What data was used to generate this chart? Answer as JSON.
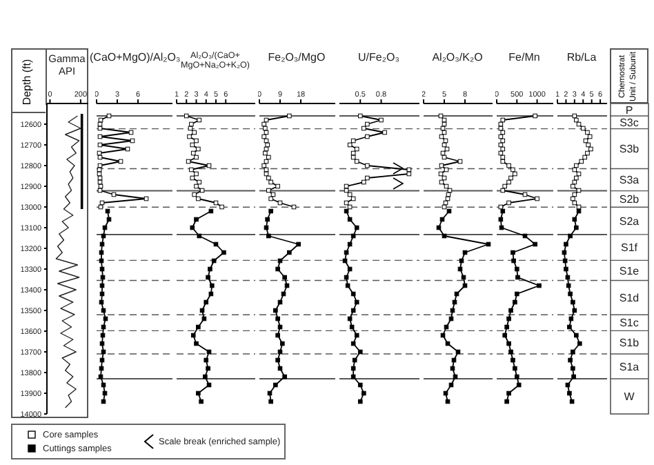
{
  "chart_data": [
    {
      "type": "line",
      "xlabel": "Gamma API",
      "ylabel": "Depth (ft)",
      "marker": "none",
      "xlim": [
        -20,
        250
      ],
      "xticks": [
        0,
        200
      ],
      "ylim": [
        14000,
        12500
      ],
      "yticks": [
        12600,
        12700,
        12800,
        12900,
        13000,
        13100,
        13200,
        13300,
        13400,
        13500,
        13600,
        13700,
        13800,
        13900,
        14000
      ],
      "series": [
        {
          "color": "#222222",
          "x": [
            180,
            120,
            200,
            100,
            190,
            140,
            170,
            110,
            160,
            130,
            150,
            120,
            140,
            100,
            130,
            90,
            150,
            80,
            120,
            60,
            90,
            50,
            80,
            40,
            180,
            60,
            190,
            50,
            170,
            60,
            150,
            70,
            160,
            80,
            140,
            70,
            150,
            90,
            170,
            80,
            130,
            100,
            150,
            110,
            170,
            120,
            140,
            100
          ],
          "values": [
            12560,
            12590,
            12620,
            12650,
            12680,
            12710,
            12740,
            12770,
            12800,
            12830,
            12860,
            12890,
            12920,
            12950,
            12980,
            13010,
            13040,
            13070,
            13100,
            13130,
            13160,
            13190,
            13220,
            13250,
            13280,
            13310,
            13340,
            13370,
            13400,
            13430,
            13460,
            13490,
            13520,
            13550,
            13580,
            13610,
            13640,
            13670,
            13700,
            13730,
            13760,
            13790,
            13820,
            13850,
            13880,
            13910,
            13940,
            13970
          ]
        },
        {
          "color": "#000000",
          "x": [
            208,
            208
          ],
          "values": [
            12550,
            13010
          ]
        }
      ]
    },
    {
      "type": "line",
      "xlabel": "(CaO+MgO)/Al₂O₃",
      "marker": "square",
      "xlim": [
        0,
        11
      ],
      "xticks": [
        0,
        3,
        6
      ],
      "ylim": [
        14000,
        12500
      ],
      "tick_labels": "x",
      "legend": "bottom",
      "annotations": [
        "Scale break (enriched sample)"
      ],
      "series": [
        {
          "name": "Core samples",
          "color": "#000000",
          "x": [
            1.8,
            0.6,
            0.5,
            0.5,
            5.0,
            0.5,
            5.2,
            0.5,
            4.5,
            0.4,
            0.5,
            3.5,
            0.5,
            0.4,
            0.4,
            0.5,
            0.5,
            0.6,
            0.5,
            2.5,
            7.2,
            0.8,
            0.6
          ],
          "values": [
            12560,
            12580,
            12600,
            12620,
            12640,
            12660,
            12680,
            12700,
            12720,
            12740,
            12760,
            12780,
            12800,
            12820,
            12840,
            12860,
            12880,
            12900,
            12920,
            12940,
            12960,
            12980,
            13000
          ]
        },
        {
          "name": "Cuttings samples",
          "color": "#000000",
          "x": [
            1.6,
            1.8,
            1.2,
            1.0,
            0.8,
            0.7,
            0.7,
            0.8,
            0.9,
            0.8,
            0.8,
            0.7,
            1.0,
            1.3,
            1.0,
            0.9,
            0.8,
            1.0,
            0.8,
            0.7,
            0.6,
            1.0,
            1.2,
            1.0
          ],
          "values": [
            13020,
            13060,
            13100,
            13140,
            13180,
            13220,
            13260,
            13300,
            13340,
            13380,
            13420,
            13460,
            13500,
            13540,
            13580,
            13620,
            13660,
            13700,
            13740,
            13780,
            13820,
            13860,
            13900,
            13940
          ]
        }
      ],
      "ref_lines": [
        {
          "axis": "y",
          "value": 12560,
          "line_style": "solid"
        },
        {
          "axis": "y",
          "value": 12622,
          "line_style": "dashed"
        },
        {
          "axis": "y",
          "value": 12815,
          "line_style": "dashed"
        },
        {
          "axis": "y",
          "value": 12922,
          "line_style": "solid"
        },
        {
          "axis": "y",
          "value": 13001,
          "line_style": "dashed"
        },
        {
          "axis": "y",
          "value": 13133,
          "line_style": "solid"
        },
        {
          "axis": "y",
          "value": 13258,
          "line_style": "dashed"
        },
        {
          "axis": "y",
          "value": 13355,
          "line_style": "dashed"
        },
        {
          "axis": "y",
          "value": 13521,
          "line_style": "dashed"
        },
        {
          "axis": "y",
          "value": 13598,
          "line_style": "dashed"
        },
        {
          "axis": "y",
          "value": 13710,
          "line_style": "dashed"
        },
        {
          "axis": "y",
          "value": 13830,
          "line_style": "solid"
        }
      ]
    },
    {
      "type": "line",
      "xlabel": "Al₂O₃/(CaO+ MgO+Na₂O+K₂O)",
      "marker": "square",
      "xlim": [
        1,
        9
      ],
      "xticks": [
        1,
        2,
        3,
        4,
        5,
        6
      ],
      "ylim": [
        14000,
        12500
      ],
      "tick_labels": "x",
      "series": [
        {
          "color": "#000000",
          "x": [
            2.0,
            3.3,
            2.5,
            2.4,
            2.8,
            2.3,
            3.0,
            2.6,
            3.2,
            2.7,
            3.0,
            2.2,
            4.3,
            2.5,
            3.0,
            2.6,
            3.3,
            3.0,
            3.6,
            2.8,
            3.2,
            5.0,
            5.6
          ],
          "values": [
            12560,
            12580,
            12600,
            12620,
            12640,
            12660,
            12680,
            12700,
            12720,
            12740,
            12760,
            12780,
            12800,
            12820,
            12840,
            12860,
            12880,
            12900,
            12920,
            12940,
            12960,
            12980,
            13000
          ]
        },
        {
          "color": "#000000",
          "x": [
            4.5,
            3.0,
            2.6,
            3.3,
            5.0,
            5.8,
            4.8,
            4.4,
            4.2,
            4.6,
            4.5,
            4.0,
            3.6,
            3.8,
            3.2,
            2.7,
            3.0,
            4.3,
            4.0,
            4.2,
            3.9,
            4.3,
            3.2,
            3.5
          ],
          "values": [
            13020,
            13060,
            13100,
            13140,
            13180,
            13220,
            13260,
            13300,
            13340,
            13380,
            13420,
            13460,
            13500,
            13540,
            13580,
            13620,
            13660,
            13700,
            13740,
            13780,
            13820,
            13860,
            13900,
            13940
          ]
        }
      ],
      "ref_lines": [
        {
          "axis": "y",
          "value": 12560,
          "line_style": "solid"
        },
        {
          "axis": "y",
          "value": 12622,
          "line_style": "dashed"
        },
        {
          "axis": "y",
          "value": 12815,
          "line_style": "dashed"
        },
        {
          "axis": "y",
          "value": 12922,
          "line_style": "solid"
        },
        {
          "axis": "y",
          "value": 13001,
          "line_style": "dashed"
        },
        {
          "axis": "y",
          "value": 13133,
          "line_style": "solid"
        },
        {
          "axis": "y",
          "value": 13258,
          "line_style": "dashed"
        },
        {
          "axis": "y",
          "value": 13355,
          "line_style": "dashed"
        },
        {
          "axis": "y",
          "value": 13521,
          "line_style": "dashed"
        },
        {
          "axis": "y",
          "value": 13598,
          "line_style": "dashed"
        },
        {
          "axis": "y",
          "value": 13710,
          "line_style": "dashed"
        },
        {
          "axis": "y",
          "value": 13830,
          "line_style": "solid"
        }
      ]
    },
    {
      "type": "line",
      "xlabel": "Fe₂O₃/MgO",
      "marker": "square",
      "xlim": [
        0,
        33
      ],
      "xticks": [
        0,
        9,
        18
      ],
      "ylim": [
        14000,
        12500
      ],
      "tick_labels": "x",
      "series": [
        {
          "color": "#000000",
          "x": [
            13,
            3,
            2,
            2.5,
            3,
            2,
            3,
            3.5,
            3,
            2.5,
            4,
            3,
            2,
            3,
            3,
            4,
            5,
            8,
            4,
            6,
            5,
            9,
            15
          ],
          "values": [
            12560,
            12580,
            12600,
            12620,
            12640,
            12660,
            12680,
            12700,
            12720,
            12740,
            12760,
            12780,
            12800,
            12820,
            12840,
            12860,
            12880,
            12900,
            12920,
            12940,
            12960,
            12980,
            13000
          ]
        },
        {
          "color": "#000000",
          "x": [
            5,
            3.5,
            3,
            4,
            17,
            13,
            9,
            8,
            11,
            12,
            10.5,
            9,
            7,
            8,
            9,
            8,
            10,
            9,
            8,
            9,
            11,
            7,
            4.5,
            5
          ],
          "values": [
            13020,
            13060,
            13100,
            13140,
            13180,
            13220,
            13260,
            13300,
            13340,
            13380,
            13420,
            13460,
            13500,
            13540,
            13580,
            13620,
            13660,
            13700,
            13740,
            13780,
            13820,
            13860,
            13900,
            13940
          ]
        }
      ],
      "ref_lines": [
        {
          "axis": "y",
          "value": 12560,
          "line_style": "solid"
        },
        {
          "axis": "y",
          "value": 12622,
          "line_style": "dashed"
        },
        {
          "axis": "y",
          "value": 12815,
          "line_style": "dashed"
        },
        {
          "axis": "y",
          "value": 12922,
          "line_style": "solid"
        },
        {
          "axis": "y",
          "value": 13001,
          "line_style": "dashed"
        },
        {
          "axis": "y",
          "value": 13133,
          "line_style": "solid"
        },
        {
          "axis": "y",
          "value": 13258,
          "line_style": "dashed"
        },
        {
          "axis": "y",
          "value": 13355,
          "line_style": "dashed"
        },
        {
          "axis": "y",
          "value": 13521,
          "line_style": "dashed"
        },
        {
          "axis": "y",
          "value": 13598,
          "line_style": "dashed"
        },
        {
          "axis": "y",
          "value": 13710,
          "line_style": "dashed"
        },
        {
          "axis": "y",
          "value": 13830,
          "line_style": "solid"
        }
      ]
    },
    {
      "type": "line",
      "xlabel": "U/Fe₂O₃",
      "marker": "square",
      "xlim": [
        0.2,
        1.35
      ],
      "xticks": [
        0.5,
        0.8
      ],
      "ylim": [
        14000,
        12500
      ],
      "tick_labels": "x",
      "series": [
        {
          "color": "#000000",
          "x": [
            0.5,
            0.8,
            0.6,
            0.55,
            0.85,
            0.6,
            0.4,
            0.35,
            0.45,
            0.4,
            0.4,
            0.45,
            0.6,
            1.2,
            1.2,
            0.6,
            0.55,
            0.3,
            0.3,
            0.35,
            0.4,
            0.3,
            0.35
          ],
          "values": [
            12560,
            12580,
            12600,
            12620,
            12640,
            12660,
            12680,
            12700,
            12720,
            12740,
            12760,
            12780,
            12800,
            12820,
            12840,
            12860,
            12880,
            12900,
            12920,
            12940,
            12960,
            12980,
            13000
          ]
        },
        {
          "color": "#000000",
          "x": [
            0.3,
            0.35,
            0.45,
            0.4,
            0.35,
            0.3,
            0.28,
            0.35,
            0.3,
            0.32,
            0.4,
            0.45,
            0.4,
            0.35,
            0.38,
            0.45,
            0.4,
            0.5,
            0.42,
            0.4,
            0.4,
            0.5,
            0.55,
            0.5
          ],
          "values": [
            13020,
            13060,
            13100,
            13140,
            13180,
            13220,
            13260,
            13300,
            13340,
            13380,
            13420,
            13460,
            13500,
            13540,
            13580,
            13620,
            13660,
            13700,
            13740,
            13780,
            13820,
            13860,
            13900,
            13940
          ]
        }
      ],
      "ref_lines": [
        {
          "axis": "y",
          "value": 12560,
          "line_style": "solid"
        },
        {
          "axis": "y",
          "value": 12622,
          "line_style": "dashed"
        },
        {
          "axis": "y",
          "value": 12815,
          "line_style": "dashed"
        },
        {
          "axis": "y",
          "value": 12922,
          "line_style": "solid"
        },
        {
          "axis": "y",
          "value": 13001,
          "line_style": "dashed"
        },
        {
          "axis": "y",
          "value": 13133,
          "line_style": "solid"
        },
        {
          "axis": "y",
          "value": 13258,
          "line_style": "dashed"
        },
        {
          "axis": "y",
          "value": 13355,
          "line_style": "dashed"
        },
        {
          "axis": "y",
          "value": 13521,
          "line_style": "dashed"
        },
        {
          "axis": "y",
          "value": 13598,
          "line_style": "dashed"
        },
        {
          "axis": "y",
          "value": 13710,
          "line_style": "dashed"
        },
        {
          "axis": "y",
          "value": 13830,
          "line_style": "solid"
        }
      ]
    },
    {
      "type": "line",
      "xlabel": "Al₂O₃/K₂O",
      "marker": "square",
      "xlim": [
        2,
        12
      ],
      "xticks": [
        2,
        5,
        8
      ],
      "ylim": [
        14000,
        12500
      ],
      "tick_labels": "x",
      "series": [
        {
          "color": "#000000",
          "x": [
            4.5,
            5.0,
            5.0,
            4.8,
            5.0,
            4.6,
            5.2,
            5.0,
            5.4,
            4.8,
            5.0,
            7.3,
            4.6,
            5.3,
            4.5,
            5.0,
            4.6,
            5.3,
            5.8,
            5.6,
            5.5,
            5.2,
            5.0
          ],
          "values": [
            12560,
            12580,
            12600,
            12620,
            12640,
            12660,
            12680,
            12700,
            12720,
            12740,
            12760,
            12780,
            12800,
            12820,
            12840,
            12860,
            12880,
            12900,
            12920,
            12940,
            12960,
            12980,
            13000
          ]
        },
        {
          "color": "#000000",
          "x": [
            5.7,
            4.7,
            4.2,
            5,
            11.4,
            8,
            7.5,
            7.3,
            7.8,
            8,
            6.8,
            6.5,
            6.2,
            6.0,
            5.3,
            4.8,
            5.5,
            7.0,
            6.4,
            6.2,
            6.6,
            6.0,
            5.2,
            5.5
          ],
          "values": [
            13020,
            13060,
            13100,
            13140,
            13180,
            13220,
            13260,
            13300,
            13340,
            13380,
            13420,
            13460,
            13500,
            13540,
            13580,
            13620,
            13660,
            13700,
            13740,
            13780,
            13820,
            13860,
            13900,
            13940
          ]
        }
      ],
      "ref_lines": [
        {
          "axis": "y",
          "value": 12560,
          "line_style": "solid"
        },
        {
          "axis": "y",
          "value": 12622,
          "line_style": "dashed"
        },
        {
          "axis": "y",
          "value": 12815,
          "line_style": "dashed"
        },
        {
          "axis": "y",
          "value": 12922,
          "line_style": "solid"
        },
        {
          "axis": "y",
          "value": 13001,
          "line_style": "dashed"
        },
        {
          "axis": "y",
          "value": 13133,
          "line_style": "solid"
        },
        {
          "axis": "y",
          "value": 13258,
          "line_style": "dashed"
        },
        {
          "axis": "y",
          "value": 13355,
          "line_style": "dashed"
        },
        {
          "axis": "y",
          "value": 13521,
          "line_style": "dashed"
        },
        {
          "axis": "y",
          "value": 13598,
          "line_style": "dashed"
        },
        {
          "axis": "y",
          "value": 13710,
          "line_style": "dashed"
        },
        {
          "axis": "y",
          "value": 13830,
          "line_style": "solid"
        }
      ]
    },
    {
      "type": "line",
      "xlabel": "Fe/Mn",
      "marker": "square",
      "xlim": [
        0,
        1400
      ],
      "xticks": [
        0,
        500,
        1000
      ],
      "ylim": [
        14000,
        12500
      ],
      "tick_labels": "x",
      "series": [
        {
          "color": "#000000",
          "x": [
            950,
            150,
            100,
            100,
            150,
            100,
            150,
            100,
            150,
            100,
            150,
            150,
            300,
            400,
            450,
            350,
            300,
            200,
            150,
            700,
            1000,
            300,
            100
          ],
          "values": [
            12560,
            12580,
            12600,
            12620,
            12640,
            12660,
            12680,
            12700,
            12720,
            12740,
            12760,
            12780,
            12800,
            12820,
            12840,
            12860,
            12880,
            12900,
            12920,
            12940,
            12960,
            12980,
            13000
          ]
        },
        {
          "color": "#000000",
          "x": [
            150,
            100,
            120,
            700,
            950,
            400,
            420,
            500,
            520,
            1050,
            500,
            450,
            350,
            300,
            250,
            200,
            300,
            350,
            400,
            450,
            500,
            550,
            300,
            250
          ],
          "values": [
            13020,
            13060,
            13100,
            13140,
            13180,
            13220,
            13260,
            13300,
            13340,
            13380,
            13420,
            13460,
            13500,
            13540,
            13580,
            13620,
            13660,
            13700,
            13740,
            13780,
            13820,
            13860,
            13900,
            13940
          ]
        }
      ],
      "ref_lines": [
        {
          "axis": "y",
          "value": 12560,
          "line_style": "solid"
        },
        {
          "axis": "y",
          "value": 12622,
          "line_style": "dashed"
        },
        {
          "axis": "y",
          "value": 12815,
          "line_style": "dashed"
        },
        {
          "axis": "y",
          "value": 12922,
          "line_style": "solid"
        },
        {
          "axis": "y",
          "value": 13001,
          "line_style": "dashed"
        },
        {
          "axis": "y",
          "value": 13133,
          "line_style": "solid"
        },
        {
          "axis": "y",
          "value": 13258,
          "line_style": "dashed"
        },
        {
          "axis": "y",
          "value": 13355,
          "line_style": "dashed"
        },
        {
          "axis": "y",
          "value": 13521,
          "line_style": "dashed"
        },
        {
          "axis": "y",
          "value": 13598,
          "line_style": "dashed"
        },
        {
          "axis": "y",
          "value": 13710,
          "line_style": "dashed"
        },
        {
          "axis": "y",
          "value": 13830,
          "line_style": "solid"
        }
      ]
    },
    {
      "type": "line",
      "xlabel": "Rb/La",
      "y2label": "Chemostrat Unit / Subunit",
      "marker": "square",
      "xlim": [
        1,
        6.8
      ],
      "xticks": [
        1,
        2,
        3,
        4,
        5,
        6
      ],
      "ylim": [
        14000,
        12500
      ],
      "tick_labels": "x",
      "series": [
        {
          "color": "#000000",
          "x": [
            3,
            3.2,
            3.5,
            4.0,
            4.5,
            4.8,
            4.3,
            4.6,
            4.9,
            4.5,
            4.2,
            3.8,
            3.2,
            3.0,
            3.5,
            3.2,
            3.0,
            2.8,
            3.5,
            3.0,
            2.8,
            3.0,
            3.5
          ],
          "values": [
            12560,
            12580,
            12600,
            12620,
            12640,
            12660,
            12680,
            12700,
            12720,
            12740,
            12760,
            12780,
            12800,
            12820,
            12840,
            12860,
            12880,
            12900,
            12920,
            12940,
            12960,
            12980,
            13000
          ]
        },
        {
          "color": "#000000",
          "x": [
            3.5,
            3.0,
            3.2,
            2.5,
            2.0,
            1.8,
            1.9,
            2.0,
            2.2,
            2.3,
            2.5,
            2.8,
            3.0,
            2.6,
            2.4,
            3.2,
            3.6,
            2.8,
            2.5,
            2.8,
            2.9,
            2.2,
            2.4,
            2.7
          ],
          "values": [
            13020,
            13060,
            13100,
            13140,
            13180,
            13220,
            13260,
            13300,
            13340,
            13380,
            13420,
            13460,
            13500,
            13540,
            13580,
            13620,
            13660,
            13700,
            13740,
            13780,
            13820,
            13860,
            13900,
            13940
          ]
        }
      ],
      "ref_lines": [
        {
          "axis": "y",
          "value": 12560,
          "line_style": "solid"
        },
        {
          "axis": "y",
          "value": 12622,
          "line_style": "dashed"
        },
        {
          "axis": "y",
          "value": 12815,
          "line_style": "dashed"
        },
        {
          "axis": "y",
          "value": 12922,
          "line_style": "solid"
        },
        {
          "axis": "y",
          "value": 13001,
          "line_style": "dashed"
        },
        {
          "axis": "y",
          "value": 13133,
          "line_style": "solid"
        },
        {
          "axis": "y",
          "value": 13258,
          "line_style": "dashed"
        },
        {
          "axis": "y",
          "value": 13355,
          "line_style": "dashed"
        },
        {
          "axis": "y",
          "value": 13521,
          "line_style": "dashed"
        },
        {
          "axis": "y",
          "value": 13598,
          "line_style": "dashed"
        },
        {
          "axis": "y",
          "value": 13710,
          "line_style": "dashed"
        },
        {
          "axis": "y",
          "value": 13830,
          "line_style": "solid"
        }
      ],
      "annotations": [
        "P",
        "S3c",
        "S3b",
        "S3a",
        "S2b",
        "S2a",
        "S1f",
        "S1e",
        "S1d",
        "S1c",
        "S1b",
        "S1a",
        "W"
      ]
    }
  ]
}
